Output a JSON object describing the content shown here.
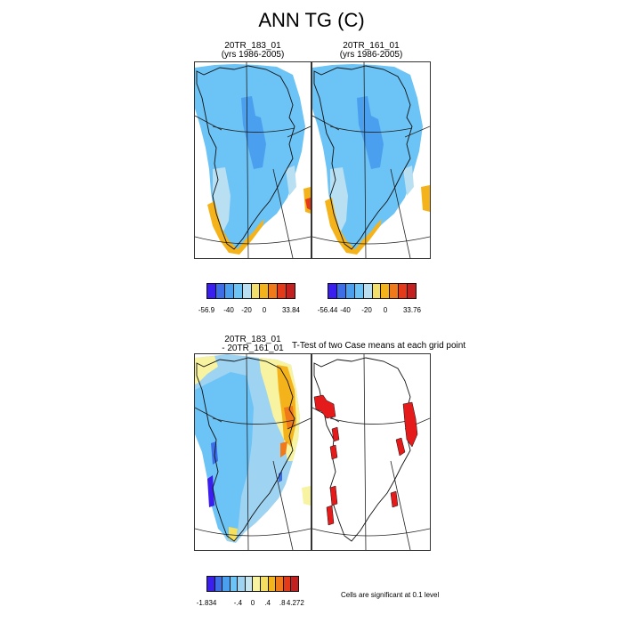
{
  "figure": {
    "title": "ANN TG (C)"
  },
  "panels": [
    {
      "title_line1": "20TR_183_01",
      "title_line2": "(yrs 1986-2005)"
    },
    {
      "title_line1": "20TR_161_01",
      "title_line2": "(yrs 1986-2005)"
    },
    {
      "title_line1": "20TR_183_01",
      "title_line2": "- 20TR_161_01"
    },
    {
      "title_line1": "T-Test of two Case means at each grid point",
      "title_line2": ""
    }
  ],
  "colorbars": [
    {
      "colors": [
        "#3a1ef0",
        "#3d6ee8",
        "#4aa0ee",
        "#6cc3f5",
        "#b9e0f2",
        "#f3e06a",
        "#f5b31b",
        "#f07a1a",
        "#e53a1a",
        "#c4201f"
      ],
      "labels": [
        "-56.9",
        "-40",
        "-20",
        "0",
        "33.84"
      ]
    },
    {
      "colors": [
        "#3a1ef0",
        "#3d6ee8",
        "#4aa0ee",
        "#6cc3f5",
        "#b9e0f2",
        "#f3e06a",
        "#f5b31b",
        "#f07a1a",
        "#e53a1a",
        "#c4201f"
      ],
      "labels": [
        "-56.44",
        "-40",
        "-20",
        "0",
        "33.76"
      ]
    },
    {
      "colors": [
        "#3a1ef0",
        "#3d6ee8",
        "#4aa0ee",
        "#6cc3f5",
        "#9fd3f2",
        "#c7e6f0",
        "#f8f3a0",
        "#f6df5e",
        "#f5b31b",
        "#f07a1a",
        "#e53a1a",
        "#c4201f"
      ],
      "labels": [
        "-1.834",
        "-.4",
        "0",
        ".4",
        ".8",
        "4.272"
      ]
    }
  ],
  "note": "Cells are significant at 0.1 level"
}
